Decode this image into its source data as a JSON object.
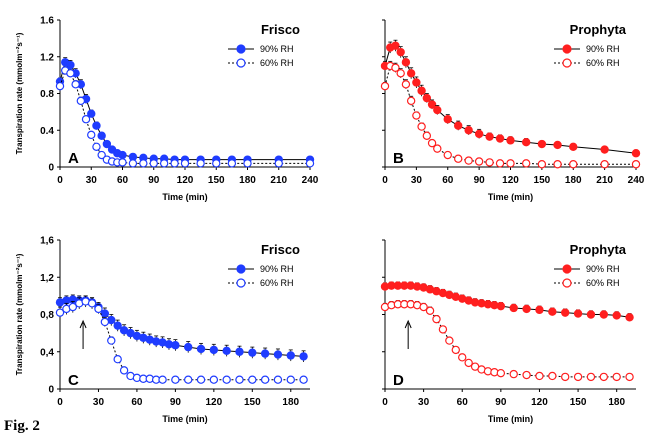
{
  "figure_label": "Fig. 2",
  "colors": {
    "blue": "#1f3cff",
    "red": "#ff1f1f",
    "axis": "#000000"
  },
  "chart_data": [
    {
      "type": "scatter",
      "panel_letter": "A",
      "title": "Frisco",
      "ylabel": "Transpiration rate (mmolm⁻²s⁻¹)",
      "xlabel": "Time (min)",
      "xlim": [
        0,
        240
      ],
      "ylim": [
        0,
        1.6
      ],
      "xticks": [
        "0",
        "30",
        "60",
        "90",
        "120",
        "150",
        "180",
        "210",
        "240"
      ],
      "yticks": [
        "0",
        "0.4",
        "0.8",
        "1.2",
        "1.6"
      ],
      "color": "#1f3cff",
      "legend_position": "top-right",
      "series": [
        {
          "name": "90% RH",
          "style": "filled-solid",
          "x": [
            0,
            5,
            10,
            15,
            20,
            25,
            30,
            35,
            40,
            45,
            50,
            55,
            60,
            70,
            80,
            90,
            100,
            110,
            120,
            135,
            150,
            165,
            180,
            210,
            240
          ],
          "y": [
            0.93,
            1.14,
            1.11,
            1.02,
            0.9,
            0.74,
            0.58,
            0.45,
            0.34,
            0.25,
            0.19,
            0.15,
            0.13,
            0.11,
            0.1,
            0.09,
            0.09,
            0.08,
            0.08,
            0.08,
            0.08,
            0.08,
            0.08,
            0.08,
            0.08
          ],
          "err": [
            0.04,
            0.05,
            0.05,
            0.05,
            0.05,
            0.05,
            0.04,
            0.04,
            0.03,
            0.03,
            0.02,
            0.02,
            0.02,
            0.02,
            0.01,
            0.01,
            0.01,
            0.01,
            0.01,
            0.01,
            0.01,
            0.01,
            0.01,
            0.01,
            0.01
          ]
        },
        {
          "name": "60% RH",
          "style": "open-dotted",
          "x": [
            0,
            5,
            10,
            15,
            20,
            25,
            30,
            35,
            40,
            45,
            50,
            55,
            60,
            70,
            80,
            90,
            100,
            110,
            120,
            135,
            150,
            165,
            180,
            210,
            240
          ],
          "y": [
            0.88,
            1.05,
            1.02,
            0.9,
            0.72,
            0.52,
            0.35,
            0.22,
            0.13,
            0.08,
            0.06,
            0.05,
            0.05,
            0.04,
            0.04,
            0.04,
            0.04,
            0.04,
            0.04,
            0.04,
            0.04,
            0.04,
            0.04,
            0.04,
            0.04
          ],
          "err": [
            0.04,
            0.04,
            0.04,
            0.04,
            0.04,
            0.03,
            0.03,
            0.02,
            0.02,
            0.01,
            0.01,
            0.01,
            0.01,
            0.01,
            0.01,
            0.01,
            0.01,
            0.01,
            0.01,
            0.01,
            0.01,
            0.01,
            0.01,
            0.01,
            0.01
          ]
        }
      ]
    },
    {
      "type": "scatter",
      "panel_letter": "B",
      "title": "Prophyta",
      "ylabel": "",
      "xlabel": "Time (min)",
      "xlim": [
        0,
        240
      ],
      "ylim": [
        0,
        1.6
      ],
      "xticks": [
        "0",
        "30",
        "60",
        "90",
        "120",
        "150",
        "180",
        "210",
        "240"
      ],
      "yticks": [],
      "color": "#ff1f1f",
      "legend_position": "top-right",
      "series": [
        {
          "name": "90% RH",
          "style": "filled-solid",
          "x": [
            0,
            5,
            10,
            15,
            20,
            25,
            30,
            35,
            40,
            45,
            50,
            60,
            70,
            80,
            90,
            100,
            110,
            120,
            135,
            150,
            165,
            180,
            210,
            240
          ],
          "y": [
            1.1,
            1.3,
            1.32,
            1.25,
            1.14,
            1.02,
            0.92,
            0.83,
            0.75,
            0.68,
            0.62,
            0.52,
            0.45,
            0.4,
            0.36,
            0.33,
            0.31,
            0.29,
            0.27,
            0.25,
            0.24,
            0.22,
            0.19,
            0.15
          ],
          "err": [
            0.05,
            0.06,
            0.06,
            0.06,
            0.06,
            0.06,
            0.06,
            0.06,
            0.05,
            0.05,
            0.05,
            0.05,
            0.05,
            0.05,
            0.05,
            0.04,
            0.04,
            0.04,
            0.04,
            0.03,
            0.03,
            0.03,
            0.03,
            0.03
          ]
        },
        {
          "name": "60% RH",
          "style": "open-dotted",
          "x": [
            0,
            5,
            10,
            15,
            20,
            25,
            30,
            35,
            40,
            45,
            50,
            60,
            70,
            80,
            90,
            100,
            110,
            120,
            135,
            150,
            165,
            180,
            210,
            240
          ],
          "y": [
            0.88,
            1.1,
            1.08,
            1.02,
            0.9,
            0.72,
            0.56,
            0.44,
            0.34,
            0.26,
            0.2,
            0.13,
            0.09,
            0.07,
            0.06,
            0.05,
            0.04,
            0.04,
            0.04,
            0.03,
            0.03,
            0.03,
            0.03,
            0.03
          ],
          "err": [
            0.04,
            0.05,
            0.05,
            0.05,
            0.05,
            0.05,
            0.04,
            0.04,
            0.04,
            0.03,
            0.03,
            0.02,
            0.02,
            0.01,
            0.01,
            0.01,
            0.01,
            0.01,
            0.01,
            0.01,
            0.01,
            0.01,
            0.01,
            0.01
          ]
        }
      ]
    },
    {
      "type": "scatter",
      "panel_letter": "C",
      "title": "Frisco",
      "ylabel": "Transpiration rate (mmolm⁻²s⁻¹)",
      "xlabel": "Time (min)",
      "xlim": [
        0,
        195
      ],
      "ylim": [
        0,
        1.6
      ],
      "xticks": [
        "0",
        "30",
        "60",
        "90",
        "120",
        "150",
        "180"
      ],
      "xtick_values": [
        0,
        30,
        60,
        90,
        120,
        150,
        180
      ],
      "yticks": [
        "0",
        "0,4",
        "0,8",
        "1,2",
        "1,6"
      ],
      "color": "#1f3cff",
      "legend_position": "top-right",
      "arrow_x": 18,
      "series": [
        {
          "name": "90% RH",
          "style": "filled-solid",
          "x": [
            0,
            5,
            10,
            15,
            20,
            25,
            30,
            35,
            40,
            45,
            50,
            55,
            60,
            65,
            70,
            75,
            80,
            85,
            90,
            100,
            110,
            120,
            130,
            140,
            150,
            160,
            170,
            180,
            190
          ],
          "y": [
            0.93,
            0.95,
            0.96,
            0.95,
            0.95,
            0.93,
            0.88,
            0.81,
            0.74,
            0.68,
            0.63,
            0.6,
            0.57,
            0.55,
            0.53,
            0.51,
            0.5,
            0.48,
            0.47,
            0.45,
            0.43,
            0.42,
            0.41,
            0.4,
            0.39,
            0.38,
            0.37,
            0.36,
            0.35
          ],
          "err": [
            0.05,
            0.05,
            0.05,
            0.05,
            0.05,
            0.05,
            0.05,
            0.06,
            0.06,
            0.06,
            0.06,
            0.06,
            0.06,
            0.06,
            0.06,
            0.06,
            0.06,
            0.06,
            0.06,
            0.06,
            0.06,
            0.06,
            0.06,
            0.06,
            0.06,
            0.06,
            0.06,
            0.06,
            0.06
          ]
        },
        {
          "name": "60% RH",
          "style": "open-dotted",
          "x": [
            0,
            5,
            10,
            15,
            20,
            25,
            30,
            35,
            40,
            45,
            50,
            55,
            60,
            65,
            70,
            75,
            80,
            90,
            100,
            110,
            120,
            130,
            140,
            150,
            160,
            170,
            180,
            190
          ],
          "y": [
            0.82,
            0.86,
            0.88,
            0.92,
            0.94,
            0.92,
            0.86,
            0.72,
            0.52,
            0.32,
            0.2,
            0.14,
            0.12,
            0.11,
            0.11,
            0.1,
            0.1,
            0.1,
            0.1,
            0.1,
            0.1,
            0.1,
            0.1,
            0.1,
            0.1,
            0.1,
            0.1,
            0.1
          ],
          "err": [
            0.06,
            0.06,
            0.06,
            0.06,
            0.06,
            0.06,
            0.05,
            0.05,
            0.04,
            0.03,
            0.02,
            0.01,
            0.01,
            0.01,
            0.01,
            0.01,
            0.01,
            0.01,
            0.01,
            0.01,
            0.01,
            0.01,
            0.01,
            0.01,
            0.01,
            0.01,
            0.01,
            0.01
          ]
        }
      ]
    },
    {
      "type": "scatter",
      "panel_letter": "D",
      "title": "Prophyta",
      "ylabel": "",
      "xlabel": "Time (min)",
      "xlim": [
        0,
        195
      ],
      "ylim": [
        0,
        1.6
      ],
      "xticks": [
        "0",
        "30",
        "60",
        "90",
        "120",
        "150",
        "180"
      ],
      "xtick_values": [
        0,
        30,
        60,
        90,
        120,
        150,
        180
      ],
      "yticks": [],
      "color": "#ff1f1f",
      "legend_position": "top-right",
      "arrow_x": 18,
      "series": [
        {
          "name": "90% RH",
          "style": "filled-solid",
          "x": [
            0,
            5,
            10,
            15,
            20,
            25,
            30,
            35,
            40,
            45,
            50,
            55,
            60,
            65,
            70,
            75,
            80,
            85,
            90,
            100,
            110,
            120,
            130,
            140,
            150,
            160,
            170,
            180,
            190
          ],
          "y": [
            1.1,
            1.11,
            1.11,
            1.11,
            1.11,
            1.1,
            1.09,
            1.07,
            1.05,
            1.03,
            1.01,
            0.99,
            0.97,
            0.95,
            0.93,
            0.92,
            0.91,
            0.9,
            0.89,
            0.87,
            0.86,
            0.85,
            0.83,
            0.82,
            0.81,
            0.8,
            0.8,
            0.79,
            0.77
          ],
          "err": [
            0.04,
            0.04,
            0.04,
            0.04,
            0.04,
            0.04,
            0.04,
            0.04,
            0.04,
            0.04,
            0.04,
            0.04,
            0.04,
            0.04,
            0.04,
            0.04,
            0.04,
            0.04,
            0.04,
            0.04,
            0.04,
            0.04,
            0.04,
            0.04,
            0.04,
            0.04,
            0.04,
            0.04,
            0.04
          ]
        },
        {
          "name": "60% RH",
          "style": "open-dotted",
          "x": [
            0,
            5,
            10,
            15,
            20,
            25,
            30,
            35,
            40,
            45,
            50,
            55,
            60,
            65,
            70,
            75,
            80,
            85,
            90,
            100,
            110,
            120,
            130,
            140,
            150,
            160,
            170,
            180,
            190
          ],
          "y": [
            0.88,
            0.9,
            0.91,
            0.91,
            0.91,
            0.9,
            0.88,
            0.84,
            0.75,
            0.64,
            0.52,
            0.42,
            0.34,
            0.28,
            0.24,
            0.21,
            0.19,
            0.18,
            0.17,
            0.16,
            0.15,
            0.14,
            0.14,
            0.13,
            0.13,
            0.13,
            0.13,
            0.13,
            0.13
          ],
          "err": [
            0.04,
            0.04,
            0.04,
            0.04,
            0.04,
            0.04,
            0.04,
            0.04,
            0.04,
            0.03,
            0.03,
            0.03,
            0.02,
            0.02,
            0.02,
            0.02,
            0.01,
            0.01,
            0.01,
            0.01,
            0.01,
            0.01,
            0.01,
            0.01,
            0.01,
            0.01,
            0.01,
            0.01,
            0.01
          ]
        }
      ]
    }
  ]
}
